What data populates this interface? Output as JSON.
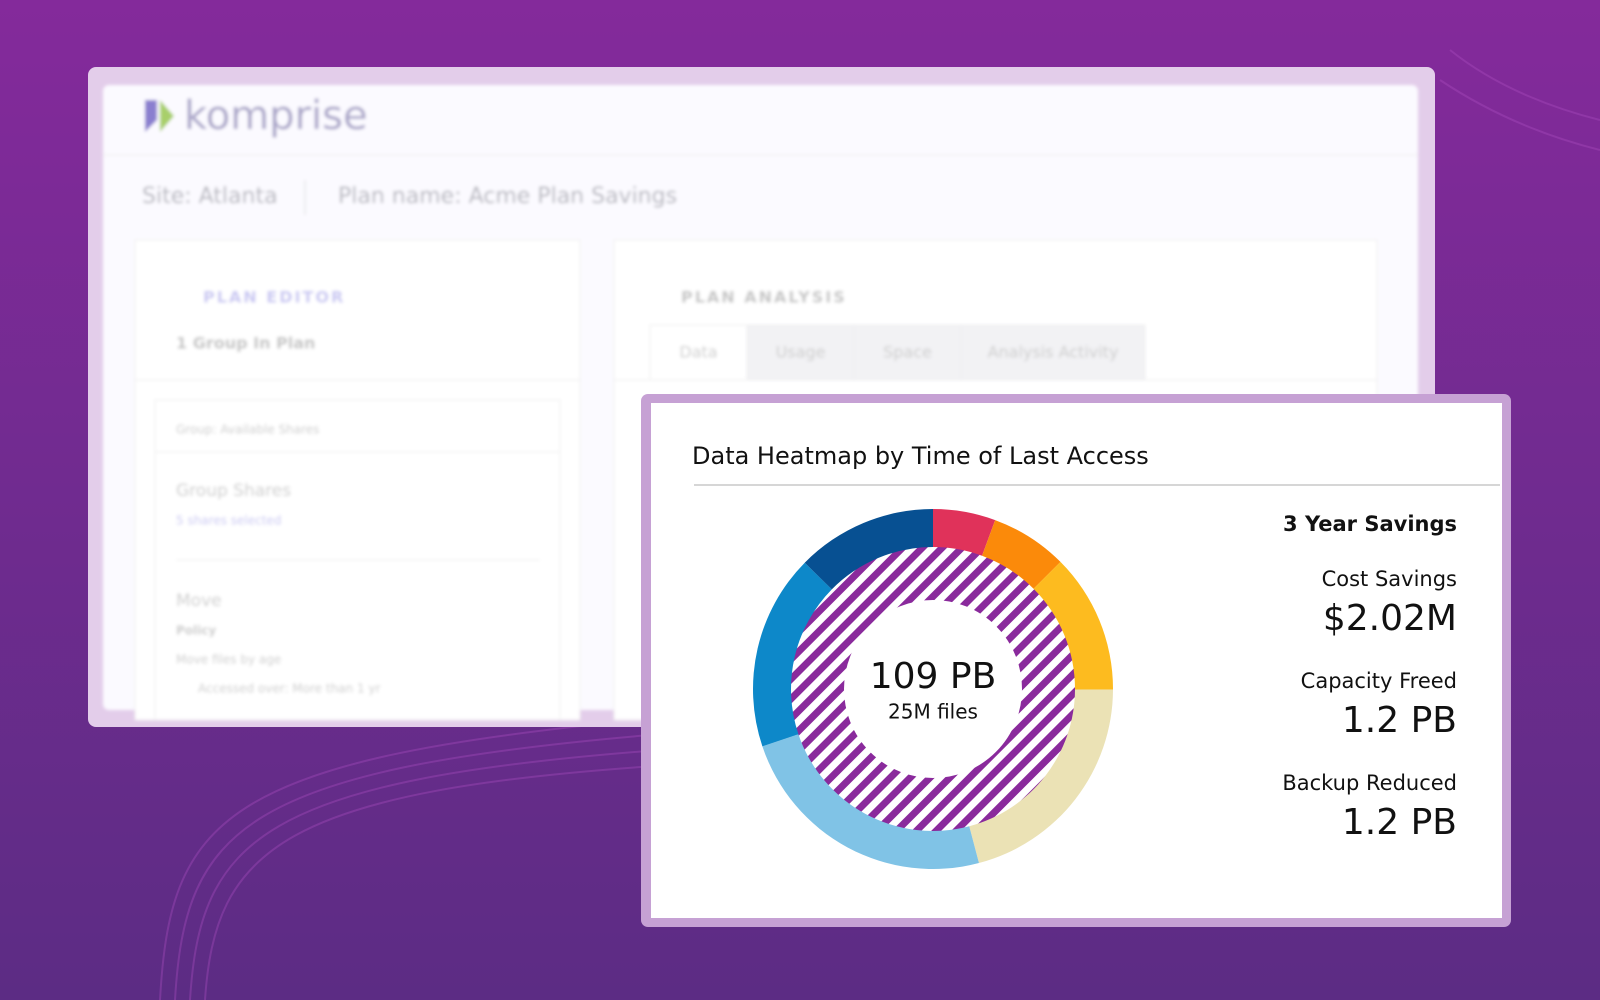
{
  "background": {
    "logo": "komprise",
    "site": "Site: Atlanta",
    "plan_name": "Plan name: Acme Plan Savings",
    "plan_editor": {
      "title": "PLAN EDITOR",
      "subtitle": "1 Group In Plan",
      "group": "Group: Available Shares",
      "shares_title": "Group Shares",
      "shares_selected": "5 shares selected",
      "move": "Move",
      "policy": "Policy",
      "policy_detail": "Move files by age",
      "accessed": "Accessed over: More than 1 yr"
    },
    "plan_analysis": {
      "title": "PLAN ANALYSIS",
      "tabs": [
        "Data",
        "Usage",
        "Space",
        "Analysis Activity"
      ]
    }
  },
  "chart_data": {
    "type": "donut",
    "title": "Data Heatmap by Time of Last Access",
    "center_value": "109 PB",
    "center_label": "25M files",
    "values": [
      5.6,
      6.9,
      12.5,
      20.8,
      23.9,
      17.5,
      12.6
    ],
    "colors": [
      "#e0325a",
      "#fb8a0a",
      "#fdbb1f",
      "#ebe2b5",
      "#80c3e6",
      "#0d88c9",
      "#075092"
    ]
  },
  "savings": {
    "title": "3 Year Savings",
    "items": [
      {
        "label": "Cost Savings",
        "value": "$2.02M"
      },
      {
        "label": "Capacity Freed",
        "value": "1.2 PB"
      },
      {
        "label": "Backup Reduced",
        "value": "1.2 PB"
      }
    ]
  }
}
